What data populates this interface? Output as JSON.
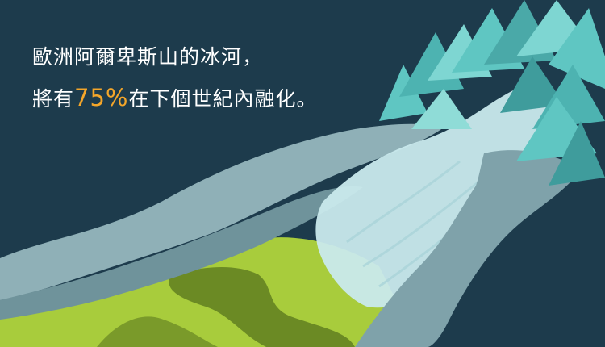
{
  "headline": {
    "line1": "歐洲阿爾卑斯山的冰河，",
    "line2_before": "將有",
    "line2_highlight": "75%",
    "line2_after": "在下個世紀內融化。"
  },
  "colors": {
    "background": "#1d3b4c",
    "highlight": "#f4a62a",
    "text": "#ffffff",
    "mountain_teal": "#5fc6c2",
    "glacier_ice": "#c9e9ec",
    "rock_gray": "#8fb0b7",
    "meadow_green": "#a8cc3c"
  },
  "icons": {
    "illustration": "glacier-mountain-illustration"
  }
}
